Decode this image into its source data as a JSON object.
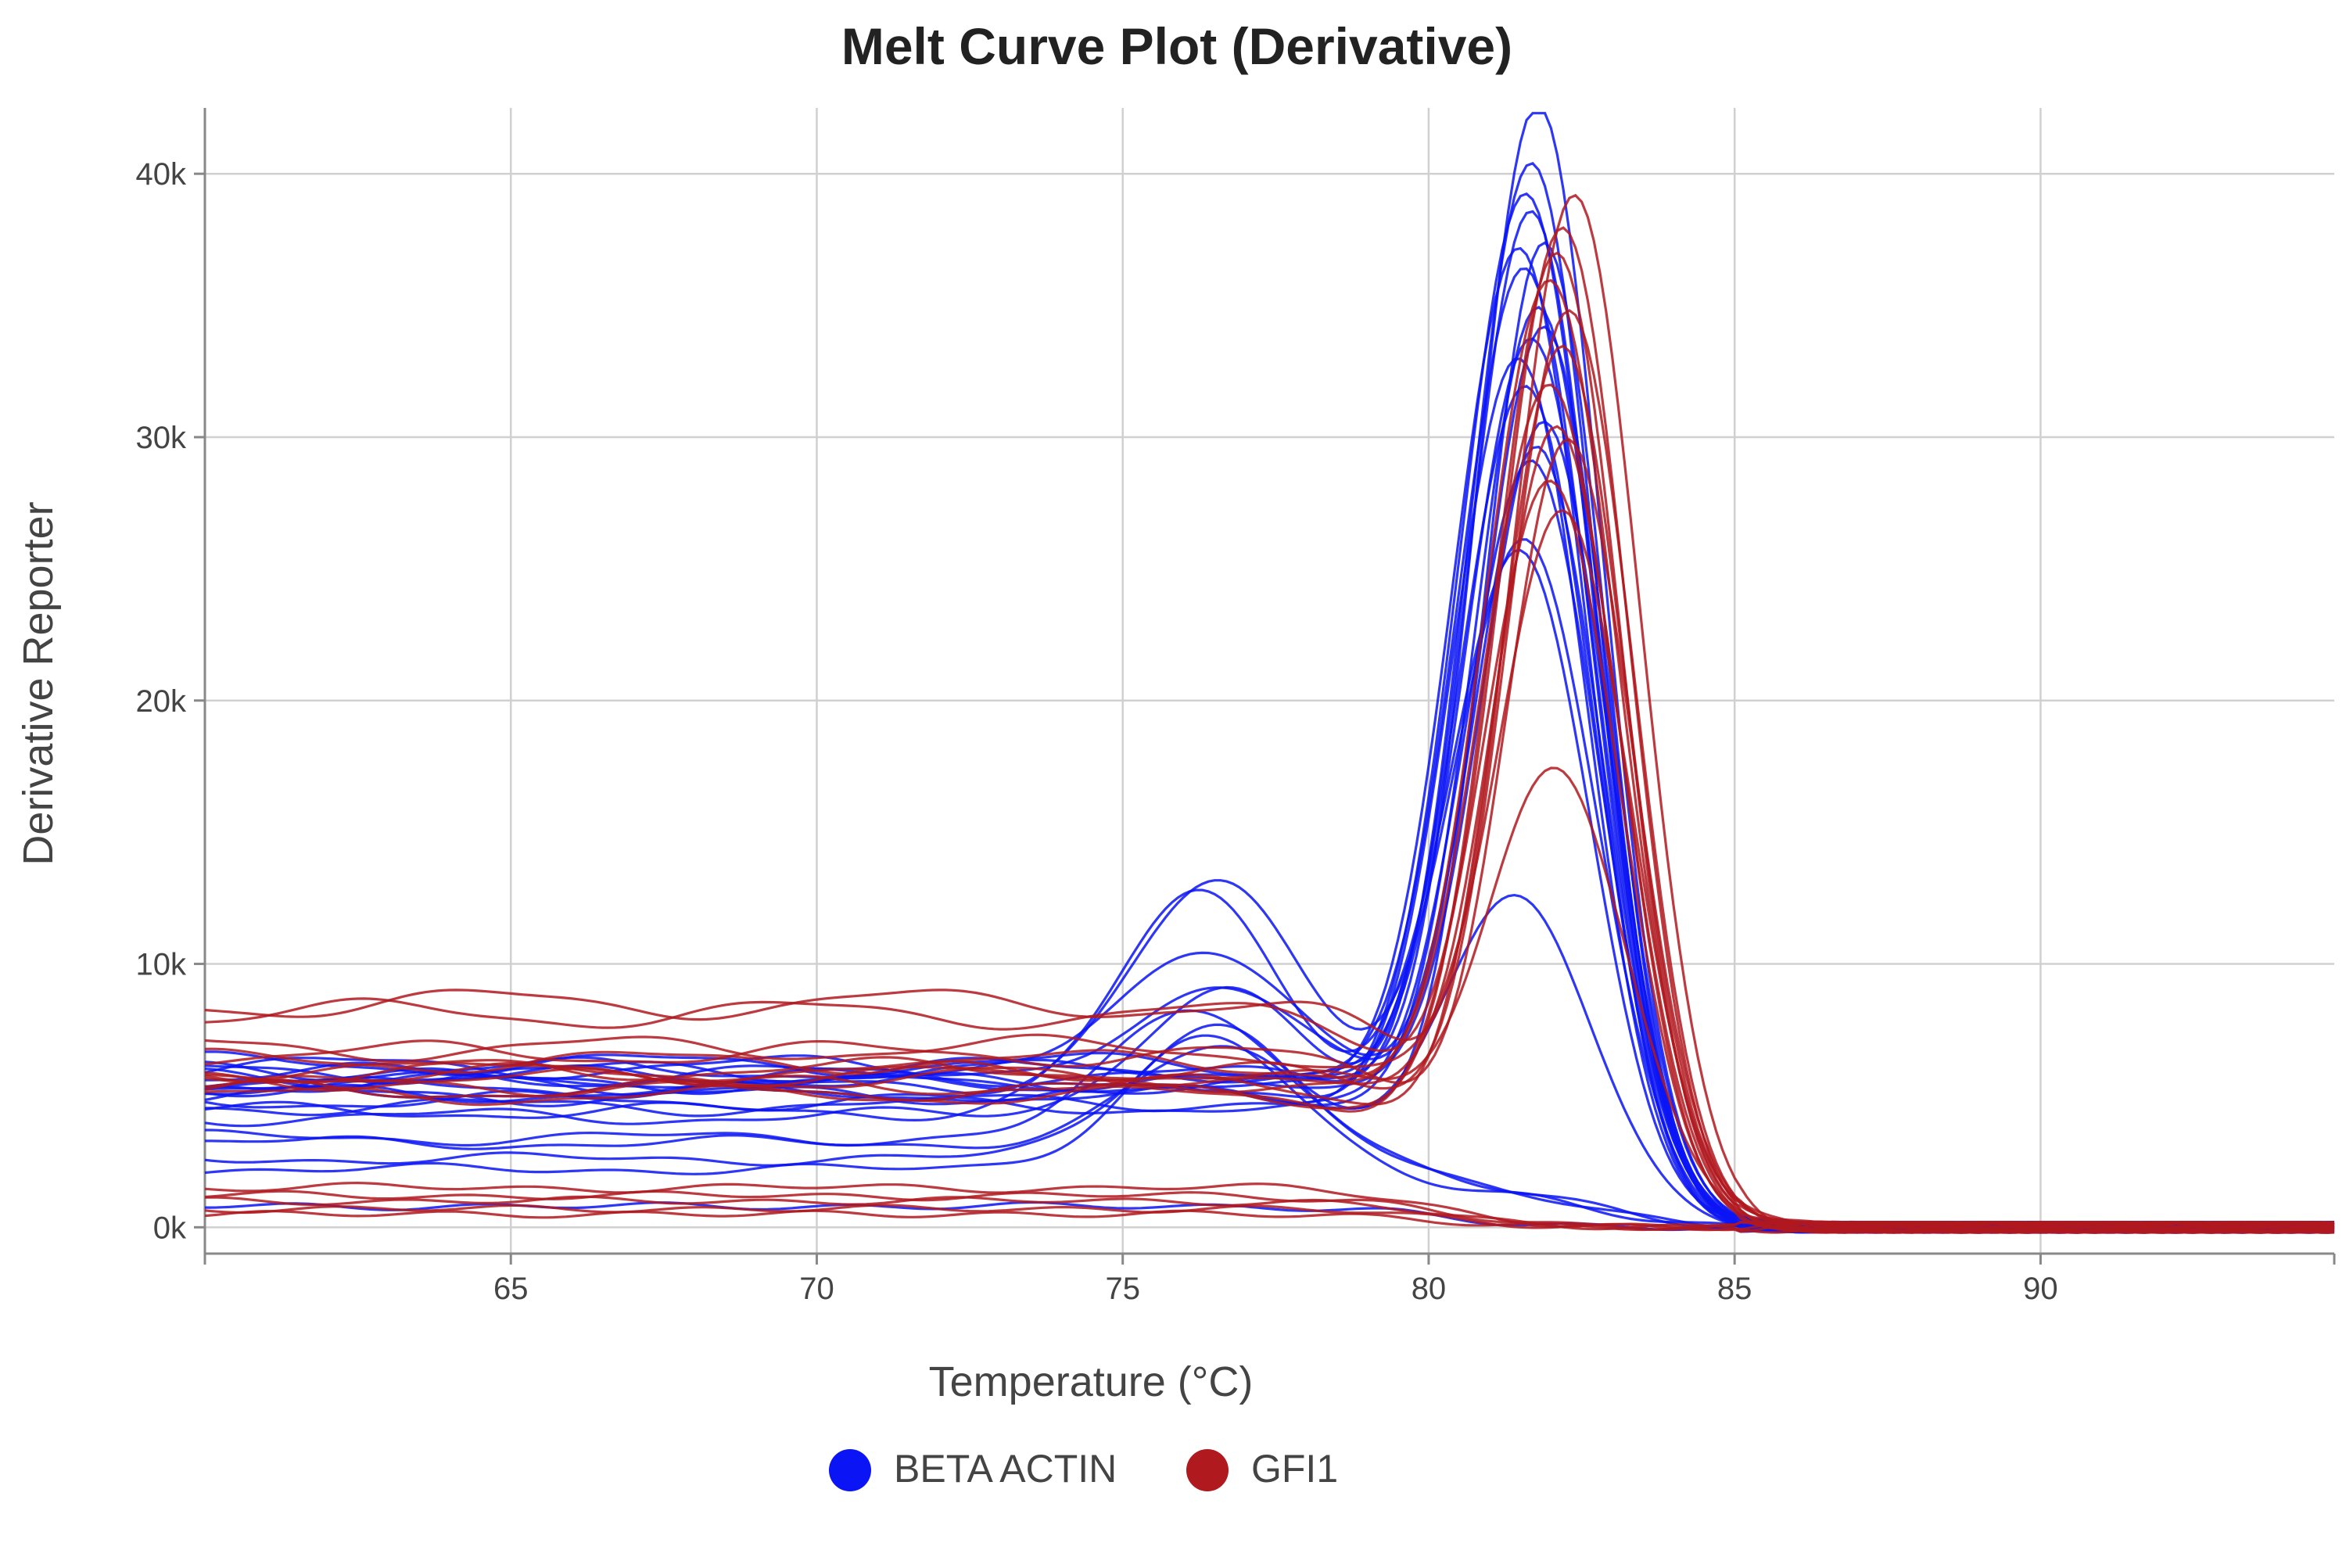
{
  "chart_data": {
    "type": "line",
    "title": "Melt Curve Plot (Derivative)",
    "xlabel": "Temperature (°C)",
    "ylabel": "Derivative Reporter",
    "xlim": [
      60,
      94.8
    ],
    "ylim": [
      -1000,
      42500
    ],
    "xticks": [
      65,
      70,
      75,
      80,
      85,
      90
    ],
    "yticks": [
      0,
      10000,
      20000,
      30000,
      40000
    ],
    "ytick_labels": [
      "0k",
      "10k",
      "20k",
      "30k",
      "40k"
    ],
    "grid": true,
    "legend_position": "bottom",
    "colors": {
      "BETA ACTIN": "#0a14f5",
      "GFI1": "#b0191e"
    },
    "legend": [
      {
        "label": "BETA ACTIN",
        "color": "#0a14f5"
      },
      {
        "label": "GFI1",
        "color": "#b0191e"
      }
    ],
    "series": [
      {
        "name": "BETA ACTIN",
        "curves": [
          {
            "base": 5500,
            "peak_t": 81.8,
            "peak": 42000,
            "width": 1.05
          },
          {
            "base": 5800,
            "peak_t": 81.7,
            "peak": 39800,
            "width": 1.05
          },
          {
            "base": 5200,
            "peak_t": 81.6,
            "peak": 38500,
            "width": 1.1
          },
          {
            "base": 6000,
            "peak_t": 81.7,
            "peak": 37800,
            "width": 1.05
          },
          {
            "base": 5400,
            "peak_t": 81.5,
            "peak": 36500,
            "width": 1.1
          },
          {
            "base": 5000,
            "peak_t": 81.9,
            "peak": 36800,
            "width": 1.0
          },
          {
            "base": 6200,
            "peak_t": 81.6,
            "peak": 35500,
            "width": 1.1
          },
          {
            "base": 4800,
            "peak_t": 81.8,
            "peak": 34500,
            "width": 1.05
          },
          {
            "base": 5600,
            "peak_t": 81.7,
            "peak": 33000,
            "width": 1.1
          },
          {
            "base": 5100,
            "peak_t": 81.5,
            "peak": 32200,
            "width": 1.1
          },
          {
            "base": 5900,
            "peak_t": 81.9,
            "peak": 30000,
            "width": 1.05
          },
          {
            "base": 4600,
            "peak_t": 81.7,
            "peak": 28500,
            "width": 1.1
          },
          {
            "base": 5300,
            "peak_t": 81.6,
            "peak": 25500,
            "width": 1.15,
            "hump_t": 76.5,
            "hump": 12400
          },
          {
            "base": 4400,
            "peak_t": 81.5,
            "peak": 25000,
            "width": 1.15,
            "hump_t": 76.3,
            "hump": 12200
          },
          {
            "base": 5700,
            "peak_t": 81.8,
            "peak": 29000,
            "width": 1.05,
            "hump_t": 76.4,
            "hump": 10300
          },
          {
            "base": 4200,
            "peak_t": 81.6,
            "peak": 31500,
            "width": 1.1,
            "hump_t": 76.6,
            "hump": 8600
          },
          {
            "base": 6100,
            "peak_t": 81.9,
            "peak": 33500,
            "width": 1.05,
            "hump_t": 76.8,
            "hump": 8200
          },
          {
            "base": 3400,
            "peak_t": 81.5,
            "peak": 12000,
            "width": 1.2,
            "hump_t": 76.2,
            "hump": 8000
          },
          {
            "base": 2600,
            "peak_t": 81.7,
            "peak": 1000,
            "width": 1.3,
            "hump_t": 76.5,
            "hump": 7500
          },
          {
            "base": 2200,
            "peak_t": 81.6,
            "peak": 900,
            "width": 1.3,
            "hump_t": 76.4,
            "hump": 7000
          },
          {
            "base": 3200,
            "peak_t": 81.8,
            "peak": 800,
            "width": 1.3,
            "hump_t": 76.6,
            "hump": 6500
          },
          {
            "base": 800,
            "peak_t": 81.6,
            "peak": 0,
            "width": 1.2
          }
        ]
      },
      {
        "name": "GFI1",
        "curves": [
          {
            "base": 8500,
            "peak_t": 82.4,
            "peak": 38800,
            "width": 1.05
          },
          {
            "base": 8100,
            "peak_t": 82.2,
            "peak": 37500,
            "width": 1.05
          },
          {
            "base": 5200,
            "peak_t": 82.1,
            "peak": 36500,
            "width": 1.05
          },
          {
            "base": 5600,
            "peak_t": 82.0,
            "peak": 35500,
            "width": 1.1
          },
          {
            "base": 6000,
            "peak_t": 82.3,
            "peak": 34500,
            "width": 1.05
          },
          {
            "base": 5400,
            "peak_t": 82.2,
            "peak": 33000,
            "width": 1.05
          },
          {
            "base": 6300,
            "peak_t": 82.0,
            "peak": 31500,
            "width": 1.1
          },
          {
            "base": 5800,
            "peak_t": 82.1,
            "peak": 30000,
            "width": 1.05
          },
          {
            "base": 6600,
            "peak_t": 82.3,
            "peak": 29500,
            "width": 1.05
          },
          {
            "base": 5000,
            "peak_t": 82.0,
            "peak": 28000,
            "width": 1.1
          },
          {
            "base": 6800,
            "peak_t": 82.2,
            "peak": 26700,
            "width": 1.1
          },
          {
            "base": 5900,
            "peak_t": 82.1,
            "peak": 17000,
            "width": 1.15
          },
          {
            "base": 1500,
            "peak_t": 82.0,
            "peak": 0,
            "width": 1.2
          },
          {
            "base": 1200,
            "peak_t": 82.0,
            "peak": 0,
            "width": 1.2
          },
          {
            "base": 1000,
            "peak_t": 82.0,
            "peak": 0,
            "width": 1.2
          },
          {
            "base": 700,
            "peak_t": 82.0,
            "peak": 0,
            "width": 1.2
          },
          {
            "base": 500,
            "peak_t": 82.0,
            "peak": 0,
            "width": 1.2
          }
        ]
      }
    ]
  }
}
